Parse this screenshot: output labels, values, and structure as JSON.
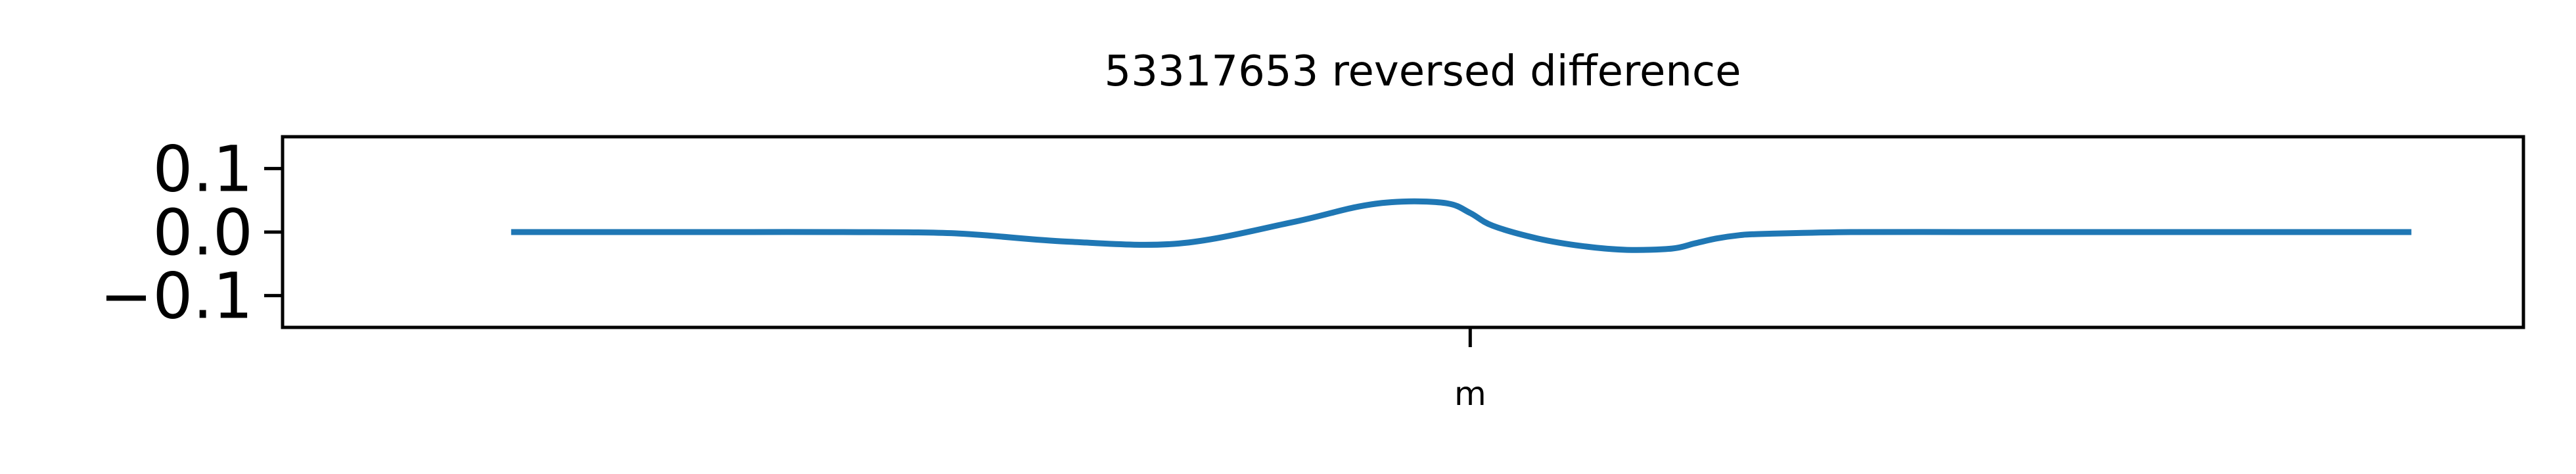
{
  "chart_data": {
    "type": "line",
    "title": "53317653 reversed difference",
    "xlabel": "",
    "ylabel": "",
    "ylim": [
      -0.15,
      0.15
    ],
    "yticks": [
      {
        "value": 0.1,
        "label": "0.1"
      },
      {
        "value": 0.0,
        "label": "0.0"
      },
      {
        "value": -0.1,
        "label": "−0.1"
      }
    ],
    "xlim": [
      0,
      1
    ],
    "xticks": [
      {
        "value": 0.53,
        "label": "m"
      }
    ],
    "grid": false,
    "legend": "none",
    "series": [
      {
        "color": "#1f77b4",
        "x": [
          0.102,
          0.15,
          0.2,
          0.25,
          0.3,
          0.35,
          0.4,
          0.45,
          0.48,
          0.5,
          0.52,
          0.53,
          0.54,
          0.56,
          0.58,
          0.6,
          0.62,
          0.63,
          0.64,
          0.65,
          0.66,
          0.7,
          0.75,
          0.8,
          0.85,
          0.9,
          0.95,
          0.9
        ],
        "y": [
          0.0,
          0.0,
          0.0,
          0.0,
          -0.002,
          -0.015,
          -0.018,
          0.015,
          0.04,
          0.048,
          0.045,
          0.03,
          0.01,
          -0.01,
          -0.022,
          -0.028,
          -0.026,
          -0.018,
          -0.01,
          -0.005,
          -0.003,
          0.0,
          0.0,
          0.0,
          0.0,
          0.0,
          0.0,
          0.0
        ]
      }
    ]
  }
}
